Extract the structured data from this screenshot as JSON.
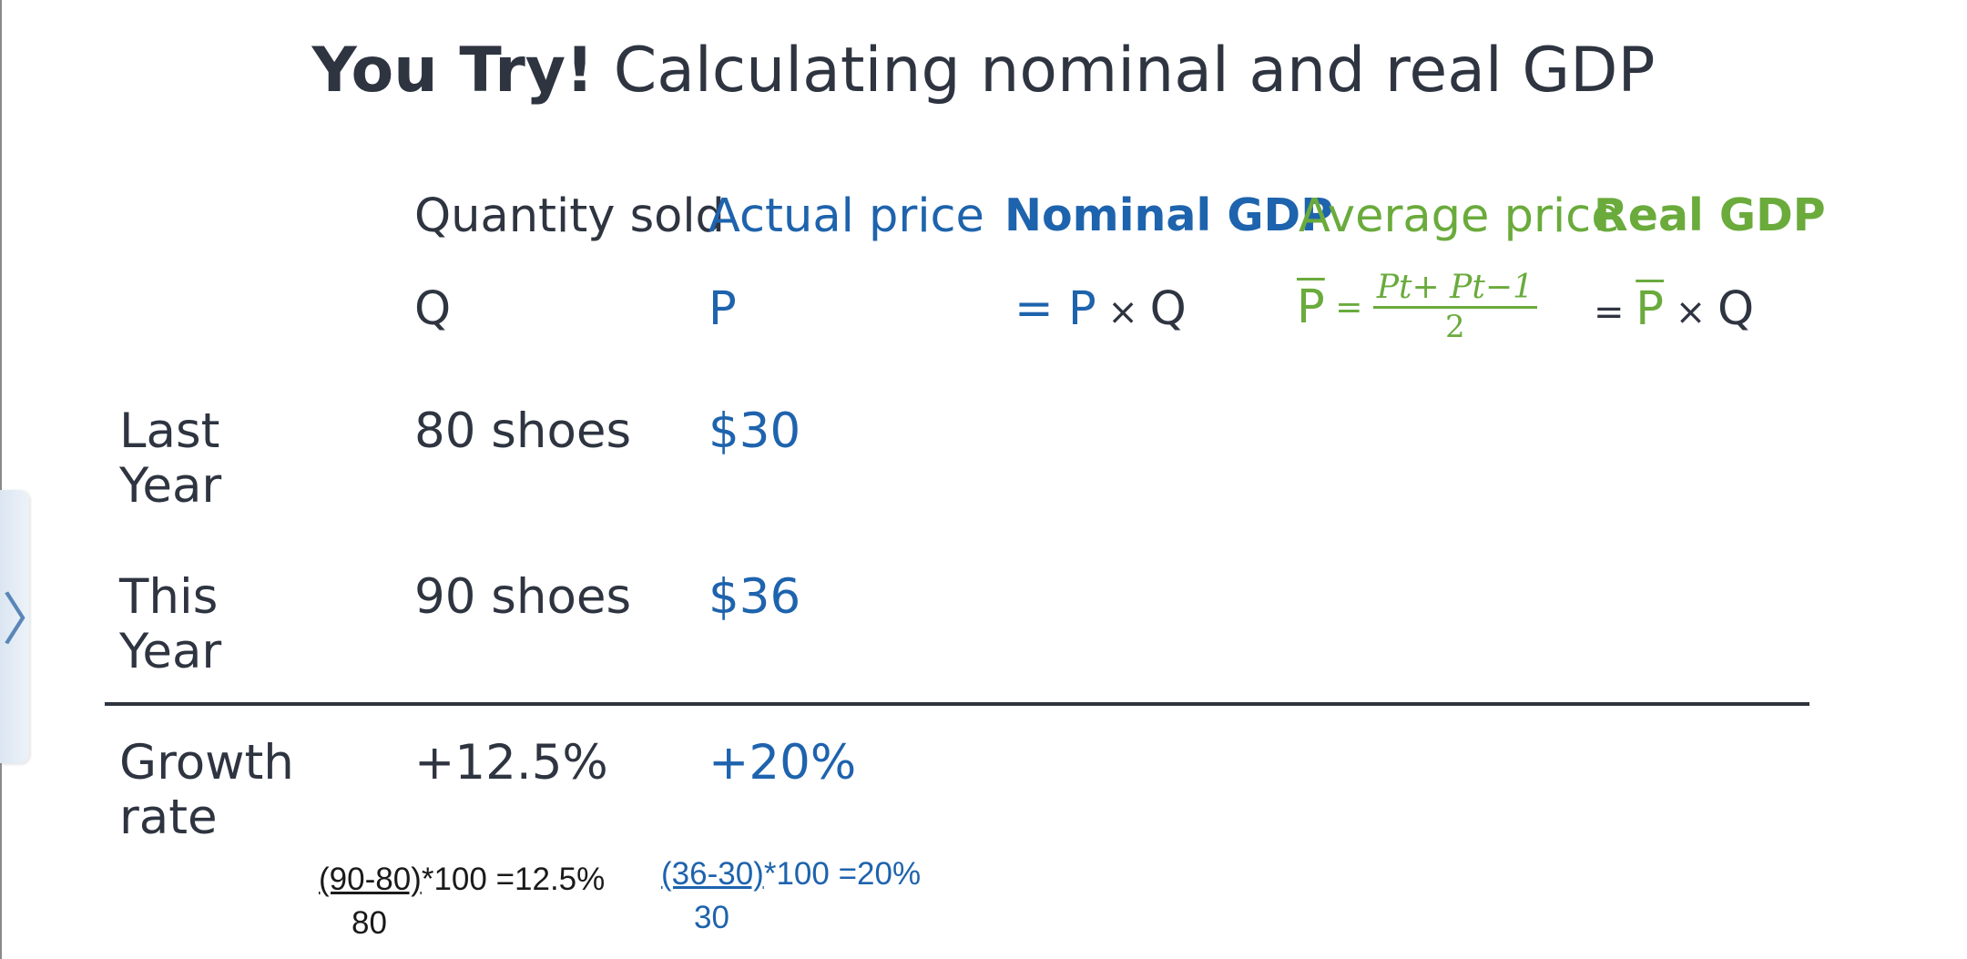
{
  "title": {
    "bold": "You Try!",
    "rest": " Calculating nominal and real GDP"
  },
  "side_tab": {
    "glyph": "〉"
  },
  "headers": {
    "quantity": "Quantity sold",
    "actual_price": "Actual price",
    "nominal_gdp": "Nominal GDP",
    "average_price": "Average price",
    "real_gdp": "Real GDP"
  },
  "formulas": {
    "q": "Q",
    "p": "P",
    "nominal": {
      "eq": "= P",
      "times": " × ",
      "q": "Q"
    },
    "average": {
      "p": "P",
      "eq": " = ",
      "numerator": "Pt+ Pt−1",
      "denominator": "2"
    },
    "real": {
      "eq": "= ",
      "p": "P",
      "times": " × ",
      "q": "Q"
    }
  },
  "rows": {
    "last_year": {
      "label_line1": "Last",
      "label_line2": "Year",
      "quantity": "80 shoes",
      "price": "$30"
    },
    "this_year": {
      "label_line1": "This",
      "label_line2": "Year",
      "quantity": "90 shoes",
      "price": "$36"
    },
    "growth": {
      "label_line1": "Growth",
      "label_line2": "rate",
      "quantity": "+12.5%",
      "price": "+20%"
    }
  },
  "calculations": {
    "quantity": {
      "numerator": "(90-80)",
      "rest": "*100 =12.5%",
      "denominator": "80"
    },
    "price": {
      "numerator": "(36-30)",
      "rest": "*100 =20%",
      "denominator": "30"
    }
  },
  "colors": {
    "text": "#2e3440",
    "blue": "#1e63ad",
    "green": "#6aab3c"
  }
}
